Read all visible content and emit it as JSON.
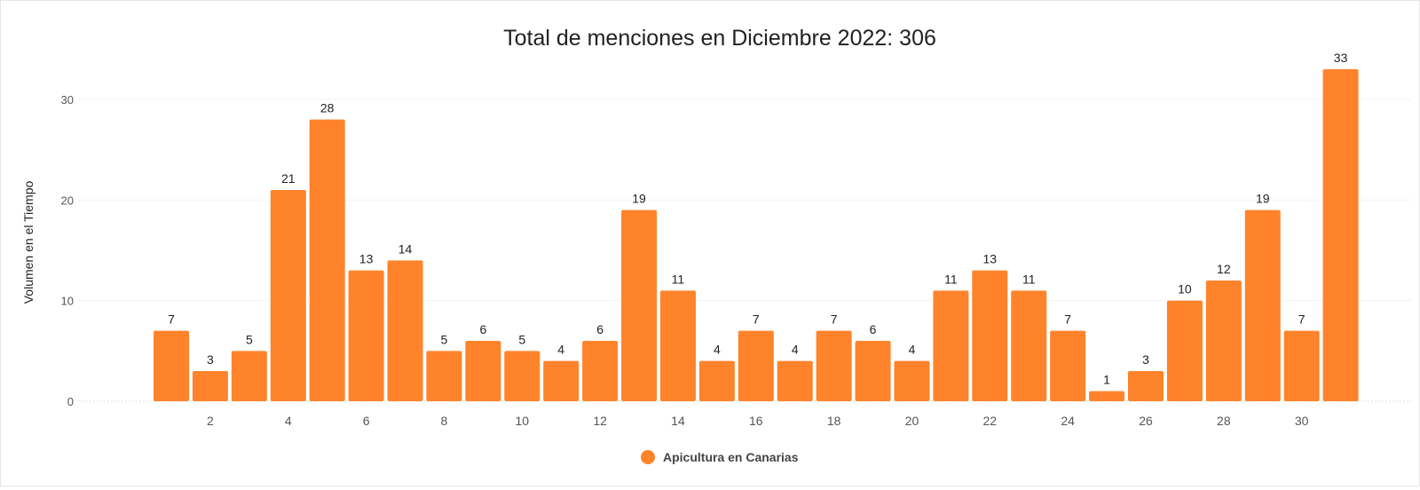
{
  "chart_data": {
    "type": "bar",
    "title": "Total de menciones en Diciembre 2022: 306",
    "xlabel": "",
    "ylabel": "Volumen en el Tiempo",
    "categories": [
      1,
      2,
      3,
      4,
      5,
      6,
      7,
      8,
      9,
      10,
      11,
      12,
      13,
      14,
      15,
      16,
      17,
      18,
      19,
      20,
      21,
      22,
      23,
      24,
      25,
      26,
      27,
      28,
      29,
      30,
      31
    ],
    "series": [
      {
        "name": "Apicultura en Canarias",
        "color": "#ff832b",
        "values": [
          7,
          3,
          5,
          21,
          28,
          13,
          14,
          5,
          6,
          5,
          4,
          6,
          19,
          11,
          4,
          7,
          4,
          7,
          6,
          4,
          11,
          13,
          11,
          7,
          1,
          3,
          10,
          12,
          19,
          7,
          33
        ]
      }
    ],
    "ylim": [
      0,
      33
    ],
    "yticks": [
      0,
      10,
      20,
      30
    ],
    "xticks": [
      "2",
      "4",
      "6",
      "8",
      "10",
      "12",
      "14",
      "16",
      "18",
      "20",
      "22",
      "24",
      "26",
      "28",
      "30"
    ],
    "grid": true,
    "legend": "bottom-center",
    "colors": {
      "grid": "#e3e3e3",
      "axis_text": "#555555",
      "label_text": "#222222"
    }
  }
}
